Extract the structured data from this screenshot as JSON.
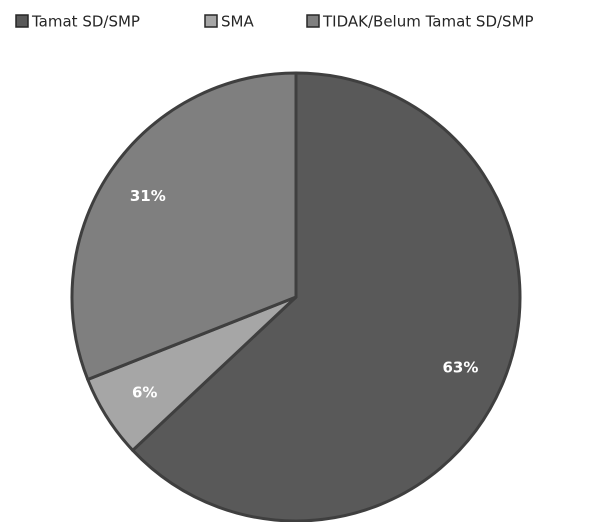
{
  "chart_data": {
    "type": "pie",
    "categories": [
      "Tamat SD/SMP",
      "SMA",
      "TIDAK/Belum Tamat SD/SMP"
    ],
    "values": [
      63,
      6,
      31
    ],
    "value_labels": [
      "63%",
      "6%",
      "31%"
    ],
    "colors": [
      "#595959",
      "#a6a6a6",
      "#7f7f7f"
    ],
    "legend": "top"
  }
}
